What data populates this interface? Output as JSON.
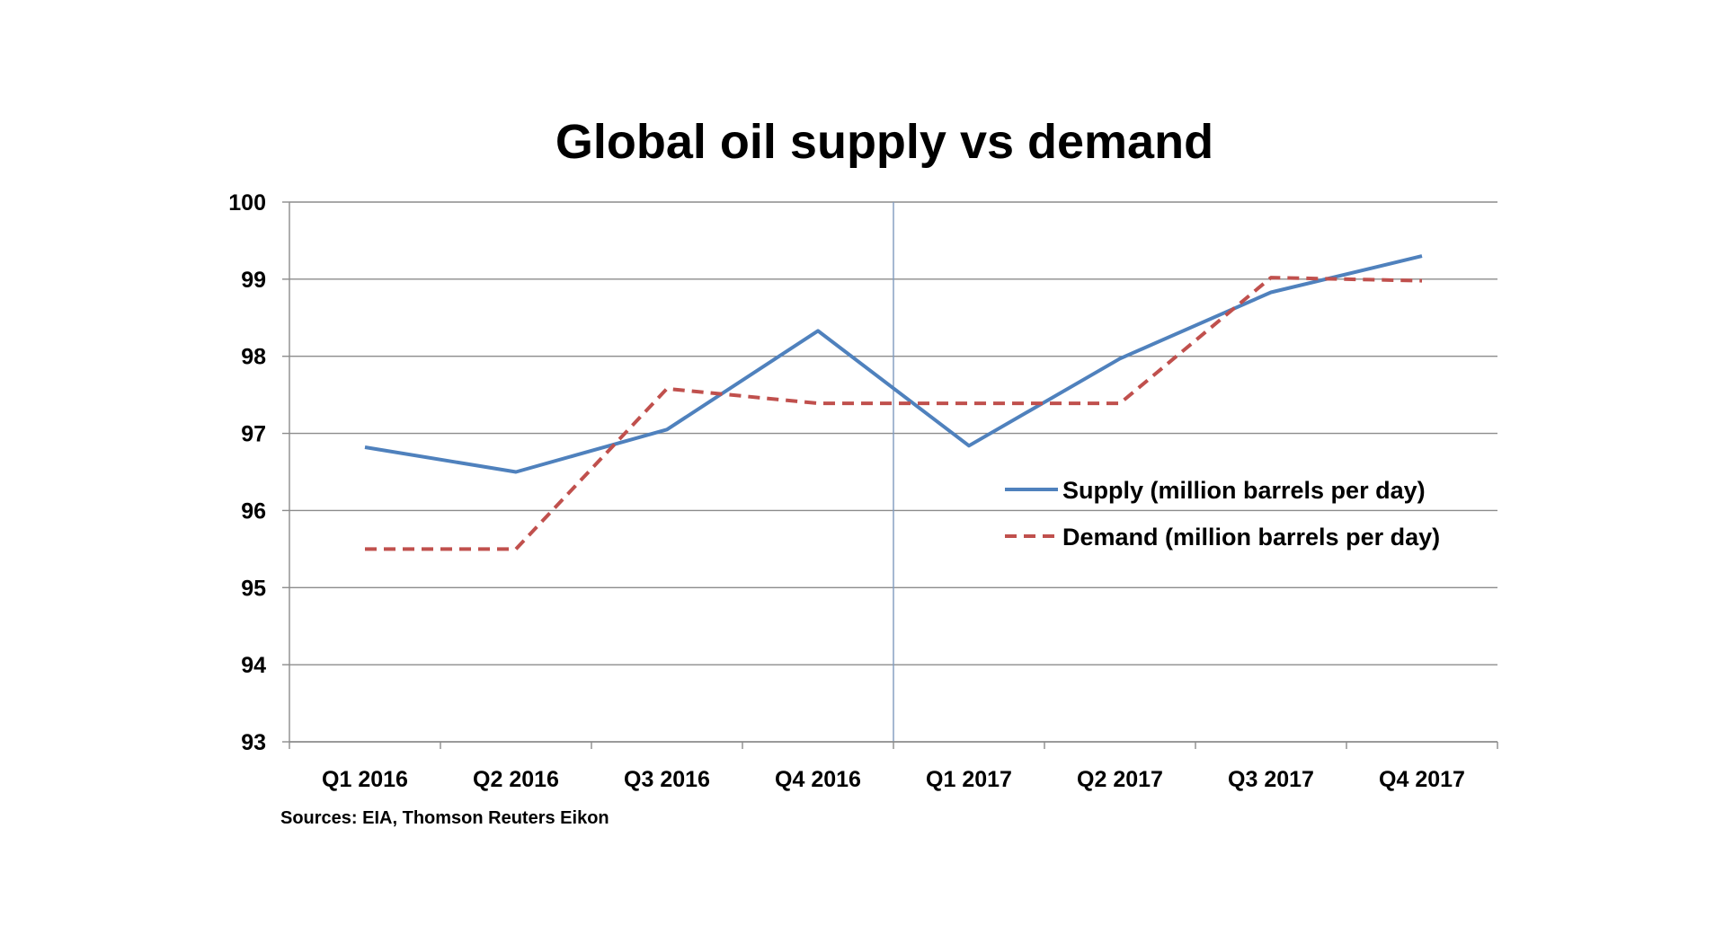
{
  "chart_data": {
    "type": "line",
    "title": "Global oil supply vs demand",
    "xlabel": "",
    "ylabel": "",
    "categories": [
      "Q1 2016",
      "Q2 2016",
      "Q3 2016",
      "Q4 2016",
      "Q1 2017",
      "Q2 2017",
      "Q3 2017",
      "Q4 2017"
    ],
    "ylim": [
      93,
      100
    ],
    "yticks": [
      "93",
      "94",
      "95",
      "96",
      "97",
      "98",
      "99",
      "100"
    ],
    "grid": true,
    "legend_position": "right",
    "source": "Sources: EIA, Thomson  Reuters Eikon",
    "series": [
      {
        "name": "Supply (million barrels per day)",
        "values": [
          96.82,
          96.5,
          97.05,
          98.33,
          96.84,
          97.97,
          98.83,
          99.3
        ],
        "color": "#4f81bd",
        "style": "solid"
      },
      {
        "name": "Demand (million barrels per day)",
        "values": [
          95.5,
          95.5,
          97.58,
          97.39,
          97.39,
          97.39,
          99.02,
          98.98
        ],
        "color": "#c0504d",
        "style": "dashed"
      }
    ]
  }
}
